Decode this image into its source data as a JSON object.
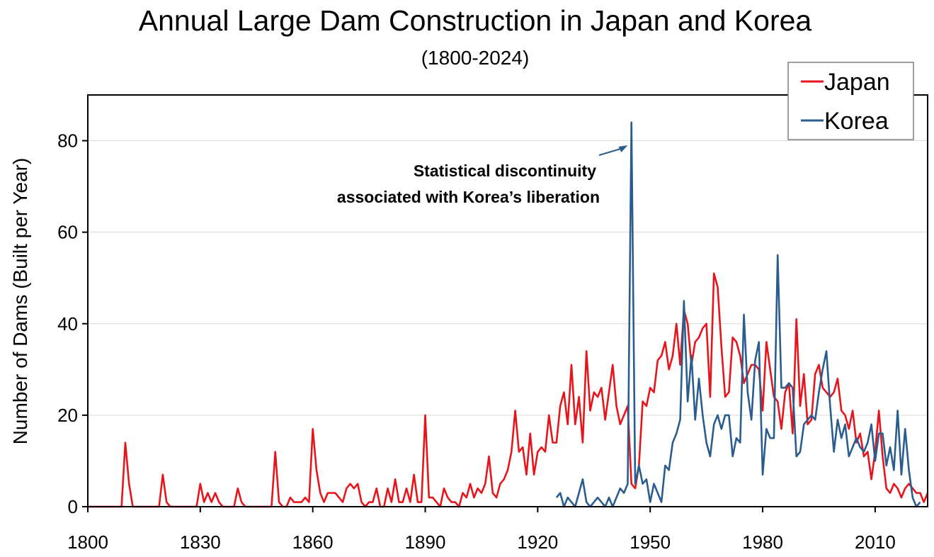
{
  "title": "Annual Large Dam Construction in Japan and Korea",
  "subtitle": "(1800-2024)",
  "colors": {
    "japan": "#e8141b",
    "korea": "#2a5d8f",
    "grid": "#d9d9d9",
    "annotation_arrow": "#2a5d8f"
  },
  "chart_data": {
    "type": "line",
    "title": "Annual Large Dam Construction in Japan and Korea",
    "subtitle": "(1800-2024)",
    "xlabel": "",
    "ylabel": "Number of Dams (Built per Year)",
    "xlim": [
      1800,
      2024
    ],
    "ylim": [
      0,
      90
    ],
    "x_ticks": [
      1800,
      1830,
      1860,
      1890,
      1920,
      1950,
      1980,
      2010
    ],
    "y_ticks": [
      0,
      20,
      40,
      60,
      80
    ],
    "grid": "horizontal",
    "legend": "top-right",
    "annotation": {
      "lines": [
        "Statistical discontinuity",
        "associated with Korea’s liberation"
      ],
      "points_to": [
        1944,
        79
      ]
    },
    "series": [
      {
        "name": "Japan",
        "color": "#e8141b",
        "x_start": 1800,
        "values": [
          0,
          0,
          0,
          0,
          0,
          0,
          0,
          0,
          0,
          0,
          14,
          5,
          0,
          0,
          0,
          0,
          0,
          0,
          0,
          0,
          7,
          1,
          0,
          0,
          0,
          0,
          0,
          0,
          0,
          0,
          5,
          1,
          3,
          1,
          3,
          1,
          0,
          0,
          0,
          0,
          4,
          1,
          0,
          0,
          0,
          0,
          0,
          0,
          0,
          0,
          12,
          1,
          0,
          0,
          2,
          1,
          1,
          1,
          2,
          1,
          17,
          8,
          3,
          1,
          3,
          3,
          3,
          2,
          1,
          4,
          5,
          4,
          5,
          1,
          0,
          1,
          1,
          4,
          0,
          0,
          4,
          1,
          6,
          1,
          1,
          4,
          1,
          7,
          1,
          1,
          20,
          2,
          2,
          1,
          0,
          4,
          2,
          1,
          1,
          0,
          3,
          2,
          5,
          2,
          4,
          3,
          5,
          11,
          3,
          2,
          5,
          6,
          8,
          12,
          21,
          12,
          13,
          7,
          16,
          7,
          12,
          13,
          12,
          20,
          14,
          14,
          22,
          25,
          18,
          31,
          18,
          24,
          14,
          34,
          21,
          25,
          24,
          26,
          19,
          25,
          31,
          22,
          18,
          20,
          22,
          5,
          4,
          9,
          23,
          22,
          26,
          25,
          32,
          33,
          36,
          30,
          33,
          40,
          31,
          43,
          40,
          31,
          36,
          37,
          39,
          40,
          24,
          51,
          48,
          35,
          24,
          25,
          37,
          36,
          33,
          27,
          29,
          31,
          31,
          30,
          21,
          36,
          30,
          24,
          23,
          17,
          25,
          27,
          16,
          41,
          22,
          29,
          18,
          19,
          29,
          31,
          26,
          25,
          24,
          25,
          28,
          21,
          20,
          17,
          21,
          14,
          16,
          11,
          12,
          6,
          12,
          21,
          11,
          4,
          3,
          5,
          4,
          2,
          4,
          5,
          4,
          3,
          3,
          1,
          3
        ]
      },
      {
        "name": "Korea",
        "color": "#2a5d8f",
        "x_start": 1925,
        "values": [
          2,
          3,
          0,
          2,
          1,
          0,
          3,
          6,
          1,
          0,
          1,
          2,
          1,
          0,
          2,
          0,
          2,
          4,
          3,
          5,
          84,
          5,
          9,
          5,
          6,
          1,
          5,
          3,
          1,
          9,
          8,
          14,
          16,
          19,
          45,
          23,
          33,
          19,
          28,
          20,
          14,
          11,
          18,
          20,
          17,
          20,
          20,
          11,
          15,
          14,
          42,
          25,
          19,
          32,
          36,
          7,
          17,
          15,
          15,
          55,
          26,
          26,
          27,
          26,
          11,
          12,
          18,
          19,
          20,
          19,
          25,
          30,
          34,
          22,
          12,
          19,
          15,
          18,
          11,
          13,
          15,
          13,
          12,
          14,
          18,
          10,
          16,
          16,
          9,
          13,
          8,
          21,
          7,
          17,
          8,
          2,
          0,
          1
        ]
      }
    ]
  }
}
